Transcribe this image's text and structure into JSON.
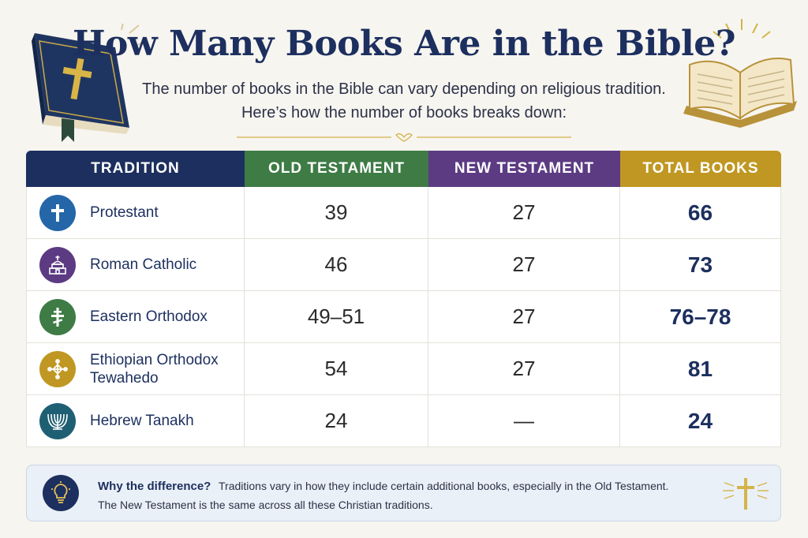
{
  "title": "How Many Books Are in the Bible?",
  "subtitle": {
    "line1": "The number of books in the Bible can vary depending on religious tradition.",
    "line2": "Here’s how the number of books breaks down:"
  },
  "table": {
    "headers": [
      "TRADITION",
      "OLD TESTAMENT",
      "NEW TESTAMENT",
      "TOTAL BOOKS"
    ],
    "rows": [
      {
        "tradition": "Protestant",
        "icon": "cross-icon",
        "old": "39",
        "new": "27",
        "total": "66"
      },
      {
        "tradition": "Roman Catholic",
        "icon": "church-icon",
        "old": "46",
        "new": "27",
        "total": "73"
      },
      {
        "tradition": "Eastern Orthodox",
        "icon": "orthodox-cross-icon",
        "old": "49–51",
        "new": "27",
        "total": "76–78"
      },
      {
        "tradition": "Ethiopian Orthodox Tewahedo",
        "icon": "ethiopian-cross-icon",
        "old": "54",
        "new": "27",
        "total": "81"
      },
      {
        "tradition": "Hebrew Tanakh",
        "icon": "menorah-icon",
        "old": "24",
        "new": "—",
        "total": "24"
      }
    ]
  },
  "note": {
    "heading": "Why the difference?",
    "line1": "Traditions vary in how they include certain additional books, especially in the Old Testament.",
    "line2": "The New Testament is the same across all these Christian traditions.",
    "icon": "lightbulb-icon"
  },
  "colors": {
    "navy": "#1c2f5e",
    "green": "#3e7b45",
    "purple": "#5c3b83",
    "gold": "#c09722",
    "teal": "#1f5f73"
  }
}
